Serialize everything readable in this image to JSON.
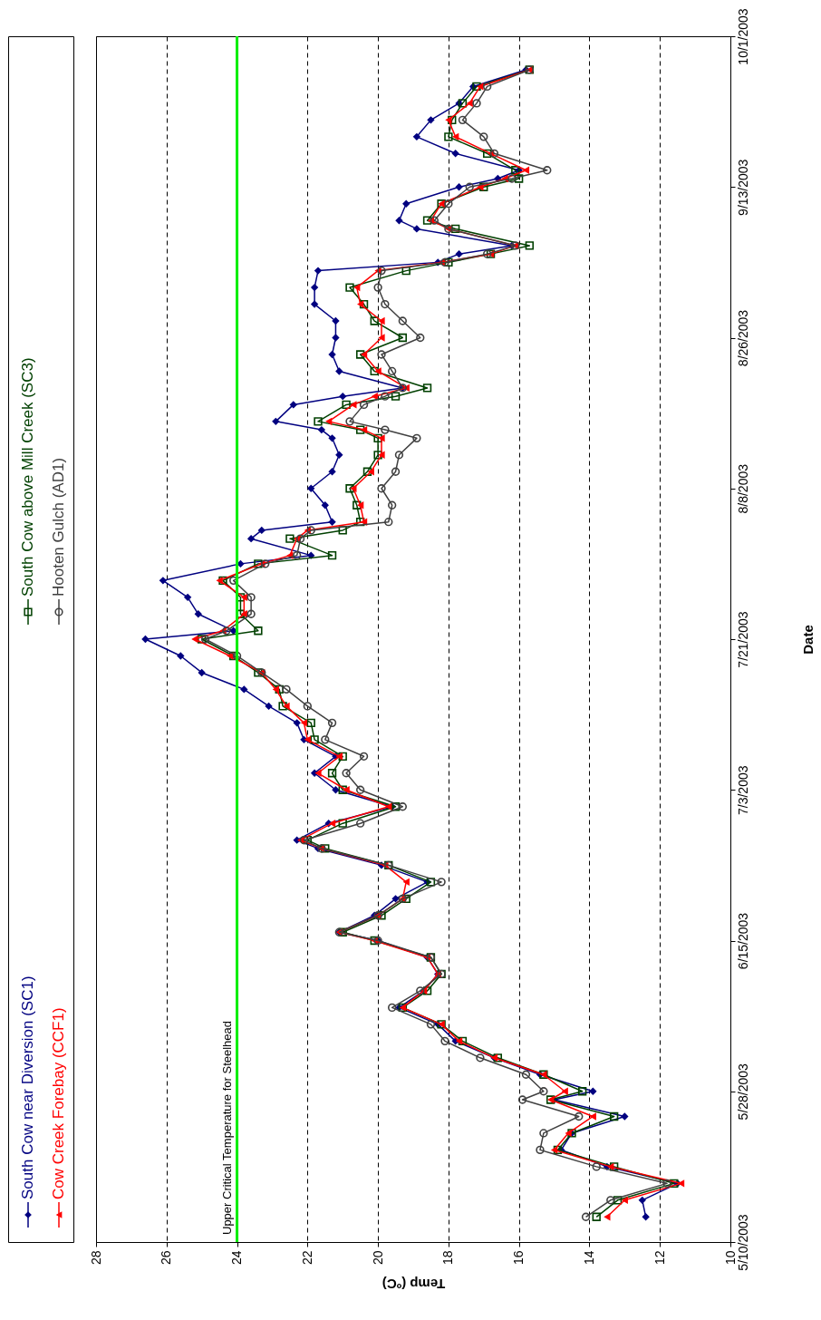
{
  "chart_data": {
    "type": "line",
    "orientation": "horizontal",
    "xlabel": "Temp (ºC)",
    "ylabel": "Date",
    "x": [
      "2003-05-13",
      "2003-05-15",
      "2003-05-17",
      "2003-05-19",
      "2003-05-21",
      "2003-05-23",
      "2003-05-25",
      "2003-05-27",
      "2003-05-28",
      "2003-05-30",
      "2003-06-01",
      "2003-06-03",
      "2003-06-05",
      "2003-06-07",
      "2003-06-09",
      "2003-06-11",
      "2003-06-13",
      "2003-06-15",
      "2003-06-16",
      "2003-06-18",
      "2003-06-20",
      "2003-06-22",
      "2003-06-24",
      "2003-06-26",
      "2003-06-27",
      "2003-06-29",
      "2003-07-01",
      "2003-07-03",
      "2003-07-05",
      "2003-07-07",
      "2003-07-09",
      "2003-07-11",
      "2003-07-13",
      "2003-07-15",
      "2003-07-17",
      "2003-07-19",
      "2003-07-21",
      "2003-07-22",
      "2003-07-24",
      "2003-07-26",
      "2003-07-28",
      "2003-07-30",
      "2003-07-31",
      "2003-08-02",
      "2003-08-03",
      "2003-08-04",
      "2003-08-06",
      "2003-08-08",
      "2003-08-10",
      "2003-08-12",
      "2003-08-14",
      "2003-08-15",
      "2003-08-16",
      "2003-08-18",
      "2003-08-19",
      "2003-08-20",
      "2003-08-22",
      "2003-08-24",
      "2003-08-26",
      "2003-08-28",
      "2003-08-30",
      "2003-09-01",
      "2003-09-03",
      "2003-09-04",
      "2003-09-05",
      "2003-09-06",
      "2003-09-08",
      "2003-09-09",
      "2003-09-11",
      "2003-09-13",
      "2003-09-14",
      "2003-09-15",
      "2003-09-17",
      "2003-09-19",
      "2003-09-21",
      "2003-09-23",
      "2003-09-25",
      "2003-09-27"
    ],
    "series": [
      {
        "name": "South Cow near Diversion (SC1)",
        "color": "#000080",
        "marker": "diamond",
        "values": [
          12.4,
          12.5,
          11.5,
          13.5,
          14.8,
          14.5,
          13.0,
          15.0,
          13.9,
          15.4,
          16.7,
          17.8,
          18.3,
          19.4,
          18.7,
          18.3,
          18.6,
          20.0,
          21.1,
          20.1,
          19.5,
          18.6,
          19.9,
          21.7,
          22.3,
          21.4,
          19.6,
          21.2,
          21.8,
          21.2,
          22.1,
          22.3,
          23.1,
          23.8,
          25.0,
          25.6,
          26.6,
          24.1,
          25.1,
          25.4,
          26.1,
          23.9,
          21.9,
          23.6,
          23.3,
          21.3,
          21.5,
          21.9,
          21.3,
          21.1,
          21.3,
          21.6,
          22.9,
          22.4,
          21.0,
          19.3,
          21.1,
          21.3,
          21.2,
          21.2,
          21.8,
          21.8,
          21.7,
          18.3,
          17.7,
          16.2,
          18.9,
          19.4,
          19.2,
          17.7,
          16.6,
          16.0,
          17.8,
          18.9,
          18.5,
          17.7,
          17.3,
          15.8
        ]
      },
      {
        "name": "South Cow above Mill Creek (SC3)",
        "color": "#004000",
        "marker": "square",
        "values": [
          13.8,
          13.2,
          11.6,
          13.3,
          14.9,
          14.5,
          13.3,
          15.1,
          14.2,
          15.3,
          16.6,
          17.6,
          18.2,
          19.3,
          18.6,
          18.2,
          18.5,
          20.1,
          21.0,
          19.9,
          19.2,
          18.5,
          19.7,
          21.5,
          22.0,
          21.0,
          19.5,
          21.0,
          21.3,
          21.0,
          21.8,
          21.9,
          22.7,
          22.8,
          23.4,
          24.1,
          25.0,
          23.4,
          23.9,
          23.9,
          24.4,
          23.4,
          21.3,
          22.5,
          21.0,
          20.5,
          20.6,
          20.8,
          20.3,
          20.0,
          20.0,
          20.5,
          21.7,
          20.9,
          19.5,
          18.6,
          20.1,
          20.5,
          19.3,
          20.1,
          20.4,
          20.8,
          19.2,
          18.0,
          16.8,
          15.7,
          17.8,
          18.6,
          18.2,
          17.0,
          16.0,
          16.1,
          16.9,
          18.0,
          17.9,
          17.6,
          17.2,
          15.7
        ]
      },
      {
        "name": "Cow Creek Forebay (CCF1)",
        "color": "#ff0000",
        "marker": "triangle",
        "values": [
          13.5,
          13.0,
          11.4,
          13.4,
          15.0,
          14.6,
          13.9,
          15.1,
          14.7,
          15.3,
          16.7,
          17.7,
          18.2,
          19.3,
          18.7,
          18.3,
          18.6,
          20.1,
          21.1,
          20.0,
          19.3,
          19.2,
          19.8,
          21.6,
          22.2,
          21.3,
          19.7,
          20.9,
          21.7,
          21.1,
          22.0,
          22.1,
          22.6,
          22.9,
          23.3,
          24.2,
          25.2,
          24.4,
          23.8,
          23.8,
          24.5,
          23.3,
          22.5,
          22.3,
          22.0,
          20.4,
          20.5,
          20.7,
          20.2,
          19.9,
          19.9,
          20.4,
          21.4,
          20.7,
          20.1,
          19.2,
          20.0,
          20.4,
          19.9,
          19.9,
          20.5,
          20.6,
          20.0,
          18.2,
          16.8,
          16.1,
          18.0,
          18.5,
          18.2,
          17.1,
          16.4,
          15.8,
          16.8,
          17.8,
          18.0,
          17.4,
          17.1,
          15.7
        ]
      },
      {
        "name": "Hooten Gulch (AD1)",
        "color": "#404040",
        "marker": "circle",
        "values": [
          14.1,
          13.4,
          11.8,
          13.8,
          15.4,
          15.3,
          14.3,
          15.9,
          15.3,
          15.8,
          17.1,
          18.1,
          18.5,
          19.6,
          18.8,
          18.2,
          18.5,
          20.0,
          21.1,
          20.0,
          19.3,
          18.2,
          19.7,
          21.6,
          22.1,
          20.5,
          19.3,
          20.5,
          20.9,
          20.4,
          21.5,
          21.3,
          22.0,
          22.6,
          23.3,
          24.0,
          24.9,
          24.3,
          23.6,
          23.6,
          24.1,
          23.2,
          22.3,
          22.2,
          21.9,
          19.7,
          19.6,
          19.9,
          19.5,
          19.4,
          18.9,
          19.8,
          20.8,
          20.4,
          19.8,
          19.3,
          19.6,
          19.9,
          18.8,
          19.3,
          19.8,
          20.0,
          19.9,
          18.1,
          16.9,
          16.1,
          18.0,
          18.4,
          18.0,
          17.4,
          16.2,
          15.2,
          16.7,
          17.0,
          17.6,
          17.2,
          16.9,
          15.7
        ]
      }
    ],
    "ylim": [
      "2003-05-10",
      "2003-10-01"
    ],
    "yticks": [
      {
        "value": "2003-05-10",
        "label": "5/10/2003"
      },
      {
        "value": "2003-05-28",
        "label": "5/28/2003"
      },
      {
        "value": "2003-06-15",
        "label": "6/15/2003"
      },
      {
        "value": "2003-07-03",
        "label": "7/3/2003"
      },
      {
        "value": "2003-07-21",
        "label": "7/21/2003"
      },
      {
        "value": "2003-08-08",
        "label": "8/8/2003"
      },
      {
        "value": "2003-08-26",
        "label": "8/26/2003"
      },
      {
        "value": "2003-09-13",
        "label": "9/13/2003"
      },
      {
        "value": "2003-10-01",
        "label": "10/1/2003"
      }
    ],
    "xlim": [
      28,
      10
    ],
    "xticks": [
      28,
      26,
      24,
      22,
      20,
      18,
      16,
      14,
      12,
      10
    ],
    "ref_lines": [
      {
        "axis": "x",
        "value": 24,
        "label": "Upper Critical Temperature for Steelhead",
        "color": "#00ee00"
      }
    ],
    "grid": "x",
    "legend": "left",
    "line_style": "solid"
  }
}
